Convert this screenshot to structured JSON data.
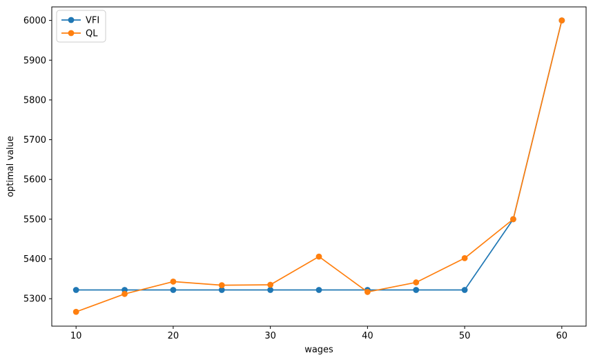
{
  "figure": {
    "background": "#ffffff"
  },
  "chart_data": {
    "type": "line",
    "title": "",
    "xlabel": "wages",
    "ylabel": "optimal value",
    "x": [
      10,
      15,
      20,
      25,
      30,
      35,
      40,
      45,
      50,
      55,
      60
    ],
    "series": [
      {
        "name": "VFI",
        "color": "#1f77b4",
        "marker": "circle",
        "values": [
          5322,
          5322,
          5322,
          5322,
          5322,
          5322,
          5322,
          5322,
          5322,
          5500,
          6000
        ]
      },
      {
        "name": "QL",
        "color": "#ff7f0e",
        "marker": "circle",
        "values": [
          5267,
          5312,
          5343,
          5334,
          5335,
          5406,
          5317,
          5341,
          5402,
          5500,
          6000
        ]
      }
    ],
    "xticks": [
      10,
      20,
      30,
      40,
      50,
      60
    ],
    "yticks": [
      5300,
      5400,
      5500,
      5600,
      5700,
      5800,
      5900,
      6000
    ],
    "xlim": [
      7.5,
      62.5
    ],
    "ylim": [
      5231,
      6034
    ],
    "grid": false,
    "legend": {
      "position": "upper-left",
      "entries": [
        "VFI",
        "QL"
      ]
    },
    "axis_color": "#000000",
    "tick_label_color": "#000000",
    "legend_border_color": "#cccccc"
  }
}
